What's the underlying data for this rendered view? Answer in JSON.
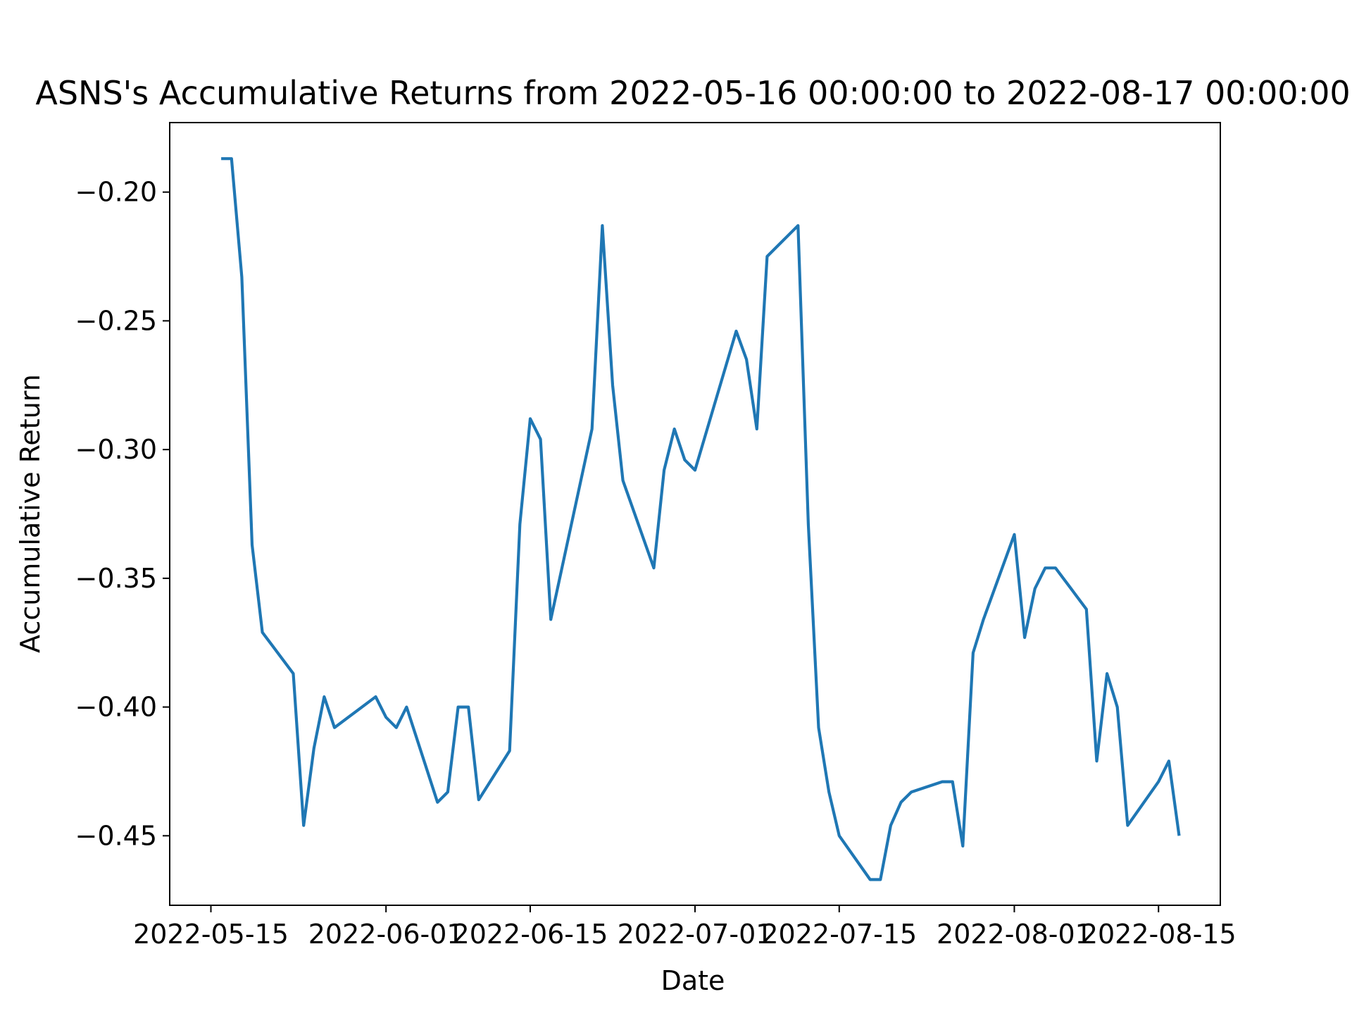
{
  "chart_data": {
    "type": "line",
    "title": "ASNS's Accumulative Returns from 2022-05-16 00:00:00 to 2022-08-17 00:00:00",
    "xlabel": "Date",
    "ylabel": "Accumulative Return",
    "xlim": [
      "2022-05-11",
      "2022-08-21"
    ],
    "ylim": [
      -0.477,
      -0.173
    ],
    "x_tick_labels": [
      "2022-05-15",
      "2022-06-01",
      "2022-06-15",
      "2022-07-01",
      "2022-07-15",
      "2022-08-01",
      "2022-08-15"
    ],
    "y_tick_values": [
      -0.2,
      -0.25,
      -0.3,
      -0.35,
      -0.4,
      -0.45
    ],
    "y_tick_labels": [
      "−0.20",
      "−0.25",
      "−0.30",
      "−0.35",
      "−0.40",
      "−0.45"
    ],
    "grid": false,
    "legend": "none",
    "series": [
      {
        "color": "#1f77b4",
        "x": [
          "2022-05-16",
          "2022-05-17",
          "2022-05-18",
          "2022-05-19",
          "2022-05-20",
          "2022-05-23",
          "2022-05-24",
          "2022-05-25",
          "2022-05-26",
          "2022-05-27",
          "2022-05-31",
          "2022-06-01",
          "2022-06-02",
          "2022-06-03",
          "2022-06-06",
          "2022-06-07",
          "2022-06-08",
          "2022-06-09",
          "2022-06-10",
          "2022-06-13",
          "2022-06-14",
          "2022-06-15",
          "2022-06-16",
          "2022-06-17",
          "2022-06-21",
          "2022-06-22",
          "2022-06-23",
          "2022-06-24",
          "2022-06-27",
          "2022-06-28",
          "2022-06-29",
          "2022-06-30",
          "2022-07-01",
          "2022-07-05",
          "2022-07-06",
          "2022-07-07",
          "2022-07-08",
          "2022-07-11",
          "2022-07-12",
          "2022-07-13",
          "2022-07-14",
          "2022-07-15",
          "2022-07-18",
          "2022-07-19",
          "2022-07-20",
          "2022-07-21",
          "2022-07-22",
          "2022-07-25",
          "2022-07-26",
          "2022-07-27",
          "2022-07-28",
          "2022-07-29",
          "2022-08-01",
          "2022-08-02",
          "2022-08-03",
          "2022-08-04",
          "2022-08-05",
          "2022-08-08",
          "2022-08-09",
          "2022-08-10",
          "2022-08-11",
          "2022-08-12",
          "2022-08-15",
          "2022-08-16",
          "2022-08-17"
        ],
        "y": [
          -0.187,
          -0.187,
          -0.233,
          -0.337,
          -0.371,
          -0.387,
          -0.446,
          -0.416,
          -0.396,
          -0.408,
          -0.396,
          -0.404,
          -0.408,
          -0.4,
          -0.437,
          -0.433,
          -0.4,
          -0.4,
          -0.436,
          -0.417,
          -0.329,
          -0.288,
          -0.296,
          -0.366,
          -0.292,
          -0.213,
          -0.275,
          -0.312,
          -0.346,
          -0.308,
          -0.292,
          -0.304,
          -0.308,
          -0.254,
          -0.265,
          -0.292,
          -0.225,
          -0.213,
          -0.329,
          -0.408,
          -0.433,
          -0.45,
          -0.467,
          -0.467,
          -0.446,
          -0.437,
          -0.433,
          -0.429,
          -0.429,
          -0.454,
          -0.379,
          -0.366,
          -0.333,
          -0.373,
          -0.354,
          -0.346,
          -0.346,
          -0.362,
          -0.421,
          -0.387,
          -0.4,
          -0.446,
          -0.429,
          -0.421,
          -0.45
        ]
      }
    ]
  }
}
